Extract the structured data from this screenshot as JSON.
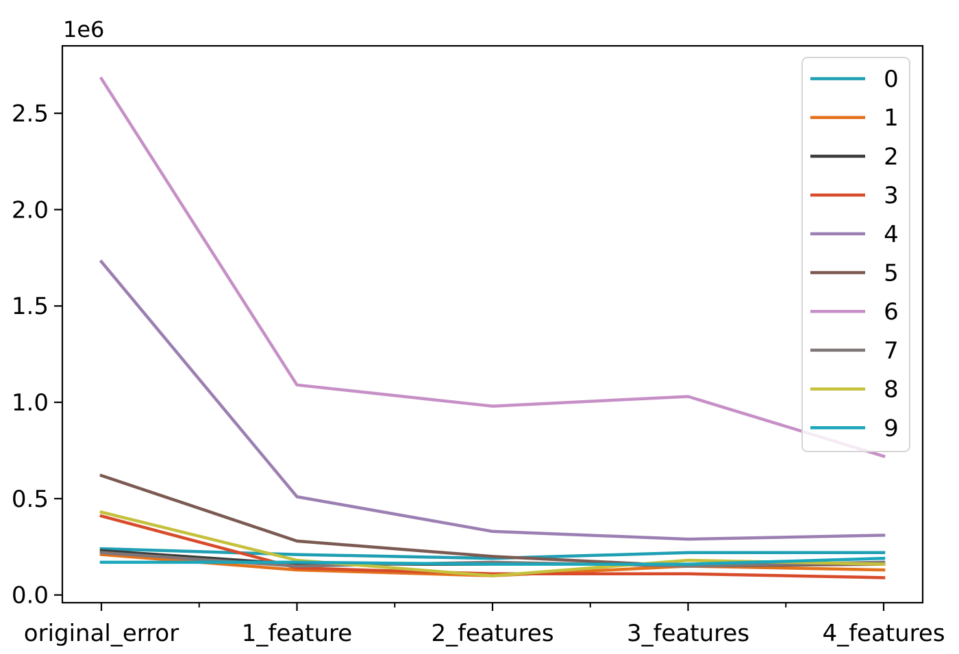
{
  "chart_data": {
    "type": "line",
    "title": "",
    "xlabel": "",
    "ylabel": "",
    "categories": [
      "original_error",
      "1_feature",
      "2_features",
      "3_features",
      "4_features"
    ],
    "y_offset_label": "1e6",
    "y_scale": 1000000,
    "ylim": [
      -0.04,
      2.85
    ],
    "yticks": [
      0.0,
      0.5,
      1.0,
      1.5,
      2.0,
      2.5
    ],
    "ytick_labels": [
      "0.0",
      "0.5",
      "1.0",
      "1.5",
      "2.0",
      "2.5"
    ],
    "grid": false,
    "legend_position": "top-right",
    "series": [
      {
        "name": "0",
        "color": "#1f9fb4",
        "values": [
          0.24,
          0.21,
          0.19,
          0.22,
          0.22
        ]
      },
      {
        "name": "1",
        "color": "#e3721d",
        "values": [
          0.21,
          0.13,
          0.1,
          0.15,
          0.13
        ]
      },
      {
        "name": "2",
        "color": "#3b3b3b",
        "values": [
          0.23,
          0.16,
          0.16,
          0.16,
          0.16
        ]
      },
      {
        "name": "3",
        "color": "#d84b2a",
        "values": [
          0.41,
          0.14,
          0.11,
          0.11,
          0.09
        ]
      },
      {
        "name": "4",
        "color": "#9c7fb2",
        "values": [
          1.73,
          0.51,
          0.33,
          0.29,
          0.31
        ]
      },
      {
        "name": "5",
        "color": "#7b5a52",
        "values": [
          0.62,
          0.28,
          0.2,
          0.15,
          0.16
        ]
      },
      {
        "name": "6",
        "color": "#c690c6",
        "values": [
          2.68,
          1.09,
          0.98,
          1.03,
          0.72
        ]
      },
      {
        "name": "7",
        "color": "#7f7777",
        "values": [
          0.22,
          0.15,
          0.17,
          0.15,
          0.17
        ]
      },
      {
        "name": "8",
        "color": "#c5c13d",
        "values": [
          0.43,
          0.18,
          0.1,
          0.18,
          0.16
        ]
      },
      {
        "name": "9",
        "color": "#1aa6bb",
        "values": [
          0.17,
          0.17,
          0.16,
          0.16,
          0.19
        ]
      }
    ]
  }
}
